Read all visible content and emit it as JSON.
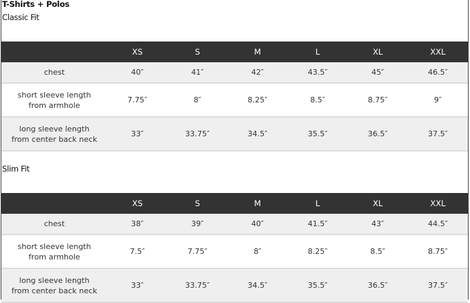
{
  "title": "T-Shirts + Polos",
  "sizes": [
    "XS",
    "S",
    "M",
    "L",
    "XL",
    "XXL"
  ],
  "tables": [
    {
      "name": "Classic Fit",
      "rows": [
        {
          "label1": "chest",
          "label2": "",
          "values": [
            "40″",
            "41″",
            "42″",
            "43.5″",
            "45″",
            "46.5″"
          ]
        },
        {
          "label1": "short sleeve length",
          "label2": "from armhole",
          "values": [
            "7.75″",
            "8″",
            "8.25″",
            "8.5″",
            "8.75″",
            "9″"
          ]
        },
        {
          "label1": "long sleeve length",
          "label2": "from center back neck",
          "values": [
            "33″",
            "33.75″",
            "34.5″",
            "35.5″",
            "36.5″",
            "37.5″"
          ]
        }
      ]
    },
    {
      "name": "Slim Fit",
      "rows": [
        {
          "label1": "chest",
          "label2": "",
          "values": [
            "38″",
            "39″",
            "40″",
            "41.5″",
            "43″",
            "44.5″"
          ]
        },
        {
          "label1": "short sleeve length",
          "label2": "from armhole",
          "values": [
            "7.5″",
            "7.75″",
            "8″",
            "8.25″",
            "8.5″",
            "8.75″"
          ]
        },
        {
          "label1": "long sleeve length",
          "label2": "from center back neck",
          "values": [
            "33″",
            "33.75″",
            "34.5″",
            "35.5″",
            "36.5″",
            "37.5″"
          ]
        }
      ]
    }
  ]
}
